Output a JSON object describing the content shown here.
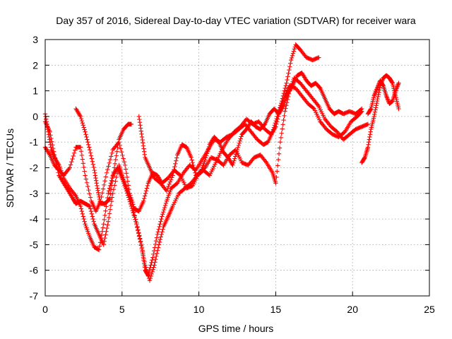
{
  "chart_data": {
    "type": "scatter",
    "title": "Day 357 of 2016, Sidereal Day-to-day VTEC variation (SDTVAR) for receiver wara",
    "xlabel": "GPS time / hours",
    "ylabel": "SDTVAR / TECUs",
    "xlim": [
      0,
      25
    ],
    "ylim": [
      -7,
      3
    ],
    "xticks": [
      "0",
      "5",
      "10",
      "15",
      "20",
      "25"
    ],
    "yticks": [
      "-7",
      "-6",
      "-5",
      "-4",
      "-3",
      "-2",
      "-1",
      "0",
      "1",
      "2",
      "3"
    ],
    "grid": true,
    "marker": "plus",
    "color": "#ff0000",
    "series": [
      {
        "points": [
          [
            0.0,
            -0.2
          ],
          [
            0.3,
            -0.6
          ],
          [
            0.6,
            -1.5
          ],
          [
            0.9,
            -2.3
          ],
          [
            1.2,
            -2.6
          ],
          [
            1.5,
            -2.9
          ],
          [
            1.8,
            -3.2
          ],
          [
            2.0,
            -3.4
          ],
          [
            2.3,
            -3.3
          ],
          [
            2.6,
            -3.4
          ],
          [
            2.9,
            -3.5
          ],
          [
            3.2,
            -4.2
          ],
          [
            3.5,
            -4.6
          ],
          [
            3.8,
            -5.0
          ],
          [
            4.1,
            -4.1
          ],
          [
            4.4,
            -3.0
          ],
          [
            4.8,
            -1.9
          ],
          [
            5.0,
            -2.3
          ],
          [
            5.3,
            -2.8
          ],
          [
            5.6,
            -3.3
          ],
          [
            6.0,
            -4.3
          ],
          [
            6.3,
            -5.1
          ],
          [
            6.5,
            -6.0
          ],
          [
            6.7,
            -6.2
          ],
          [
            7.0,
            -5.5
          ],
          [
            7.3,
            -4.6
          ],
          [
            7.6,
            -3.9
          ],
          [
            7.9,
            -3.3
          ],
          [
            8.2,
            -2.8
          ],
          [
            8.6,
            -2.6
          ],
          [
            9.0,
            -2.2
          ],
          [
            9.4,
            -1.9
          ],
          [
            9.8,
            -2.1
          ],
          [
            10.2,
            -1.7
          ],
          [
            10.6,
            -1.3
          ],
          [
            11.0,
            -0.9
          ],
          [
            11.4,
            -1.0
          ],
          [
            11.8,
            -0.8
          ],
          [
            12.2,
            -0.7
          ],
          [
            12.6,
            -0.5
          ],
          [
            13.0,
            -0.3
          ],
          [
            13.4,
            -0.6
          ],
          [
            13.8,
            -0.9
          ],
          [
            14.2,
            -1.1
          ],
          [
            14.5,
            -1.0
          ],
          [
            14.8,
            -0.6
          ],
          [
            15.1,
            0.0
          ],
          [
            15.4,
            0.6
          ],
          [
            15.7,
            1.3
          ],
          [
            16.0,
            2.2
          ],
          [
            16.3,
            2.8
          ],
          [
            16.6,
            2.6
          ],
          [
            17.0,
            2.3
          ],
          [
            17.4,
            2.2
          ],
          [
            17.8,
            2.3
          ]
        ]
      },
      {
        "points": [
          [
            0.0,
            -1.2
          ],
          [
            0.3,
            -1.5
          ],
          [
            0.6,
            -1.9
          ],
          [
            0.9,
            -2.1
          ],
          [
            1.2,
            -2.3
          ],
          [
            1.6,
            -2.0
          ],
          [
            2.0,
            -1.2
          ],
          [
            2.3,
            -1.2
          ],
          [
            2.6,
            -2.3
          ],
          [
            3.0,
            -3.3
          ],
          [
            3.3,
            -3.7
          ],
          [
            3.6,
            -3.3
          ],
          [
            4.0,
            -2.2
          ],
          [
            4.4,
            -1.3
          ],
          [
            4.8,
            -1.0
          ],
          [
            5.2,
            -1.9
          ],
          [
            5.5,
            -3.0
          ],
          [
            5.8,
            -3.6
          ],
          [
            6.1,
            -3.7
          ],
          [
            6.4,
            -3.3
          ],
          [
            6.7,
            -2.6
          ],
          [
            7.0,
            -2.2
          ],
          [
            7.3,
            -2.3
          ],
          [
            7.6,
            -2.6
          ],
          [
            8.0,
            -2.4
          ],
          [
            8.4,
            -2.1
          ],
          [
            8.8,
            -2.3
          ],
          [
            9.2,
            -2.8
          ],
          [
            9.6,
            -2.7
          ],
          [
            10.0,
            -2.2
          ],
          [
            10.4,
            -2.0
          ],
          [
            10.8,
            -1.6
          ],
          [
            11.2,
            -1.7
          ],
          [
            11.6,
            -1.9
          ],
          [
            12.0,
            -1.5
          ],
          [
            12.4,
            -1.3
          ],
          [
            12.8,
            -1.8
          ],
          [
            13.2,
            -1.9
          ],
          [
            13.6,
            -1.6
          ],
          [
            14.0,
            -1.5
          ],
          [
            14.4,
            -1.8
          ],
          [
            14.8,
            -2.2
          ],
          [
            15.0,
            -2.6
          ],
          [
            15.3,
            -1.0
          ],
          [
            15.6,
            0.2
          ],
          [
            15.9,
            1.0
          ],
          [
            16.2,
            1.5
          ],
          [
            16.6,
            1.3
          ],
          [
            17.0,
            1.0
          ],
          [
            17.4,
            0.7
          ],
          [
            17.8,
            0.4
          ],
          [
            18.2,
            -0.1
          ],
          [
            18.6,
            -0.4
          ],
          [
            19.0,
            -0.6
          ],
          [
            19.4,
            -0.9
          ],
          [
            19.8,
            -0.7
          ],
          [
            20.2,
            -0.5
          ],
          [
            20.6,
            -0.4
          ],
          [
            21.0,
            -0.3
          ]
        ]
      },
      {
        "points": [
          [
            0.0,
            0.1
          ],
          [
            0.2,
            -0.6
          ],
          [
            0.4,
            -1.3
          ],
          [
            0.6,
            -1.6
          ],
          [
            0.9,
            -1.9
          ],
          [
            1.2,
            -2.4
          ],
          [
            1.6,
            -2.8
          ],
          [
            2.0,
            -3.1
          ],
          [
            2.3,
            -3.5
          ],
          [
            2.6,
            -4.2
          ],
          [
            2.9,
            -4.7
          ],
          [
            3.2,
            -5.1
          ],
          [
            3.5,
            -5.2
          ],
          [
            3.8,
            -4.2
          ],
          [
            4.1,
            -3.0
          ],
          [
            4.4,
            -2.3
          ],
          [
            4.7,
            -2.0
          ],
          [
            5.0,
            -2.4
          ],
          [
            5.3,
            -2.9
          ],
          [
            5.6,
            -3.5
          ],
          [
            5.9,
            -4.1
          ],
          [
            6.2,
            -4.9
          ],
          [
            6.5,
            -5.8
          ],
          [
            6.8,
            -6.4
          ],
          [
            7.1,
            -5.8
          ],
          [
            7.4,
            -5.0
          ],
          [
            7.7,
            -4.3
          ],
          [
            8.0,
            -3.9
          ],
          [
            8.3,
            -3.5
          ],
          [
            8.7,
            -3.0
          ],
          [
            9.1,
            -2.8
          ],
          [
            9.5,
            -2.6
          ],
          [
            9.9,
            -2.3
          ],
          [
            10.3,
            -2.1
          ],
          [
            10.7,
            -2.3
          ],
          [
            11.1,
            -1.8
          ],
          [
            11.5,
            -1.3
          ],
          [
            11.9,
            -0.9
          ],
          [
            12.3,
            -0.6
          ],
          [
            12.7,
            -0.4
          ],
          [
            13.1,
            -0.1
          ],
          [
            13.5,
            -0.3
          ],
          [
            13.9,
            -0.2
          ],
          [
            14.3,
            -0.5
          ],
          [
            14.7,
            -0.7
          ],
          [
            15.0,
            -0.4
          ],
          [
            15.3,
            0.3
          ],
          [
            15.6,
            0.8
          ],
          [
            15.9,
            1.2
          ],
          [
            16.3,
            1.1
          ],
          [
            16.7,
            0.8
          ],
          [
            17.1,
            0.5
          ],
          [
            17.5,
            0.3
          ],
          [
            17.9,
            -0.2
          ],
          [
            18.3,
            -0.5
          ],
          [
            18.7,
            -0.7
          ],
          [
            19.1,
            -0.8
          ],
          [
            19.5,
            -0.6
          ],
          [
            19.9,
            -0.2
          ],
          [
            20.3,
            0.0
          ],
          [
            20.6,
            0.2
          ]
        ]
      },
      {
        "points": [
          [
            2.0,
            0.3
          ],
          [
            2.3,
            0.0
          ],
          [
            2.6,
            -0.6
          ],
          [
            2.9,
            -1.3
          ],
          [
            3.2,
            -2.1
          ],
          [
            3.4,
            -2.8
          ],
          [
            3.6,
            -3.4
          ],
          [
            3.9,
            -3.4
          ],
          [
            4.2,
            -3.2
          ],
          [
            4.5,
            -2.0
          ],
          [
            4.8,
            -0.9
          ],
          [
            5.1,
            -0.5
          ],
          [
            5.4,
            -0.3
          ],
          [
            5.6,
            -0.3
          ]
        ]
      },
      {
        "points": [
          [
            6.1,
            0.0
          ],
          [
            6.3,
            -0.8
          ],
          [
            6.5,
            -1.6
          ],
          [
            6.8,
            -2.0
          ],
          [
            7.1,
            -2.4
          ],
          [
            7.5,
            -2.6
          ],
          [
            7.9,
            -2.9
          ],
          [
            8.3,
            -2.3
          ],
          [
            8.6,
            -1.5
          ],
          [
            8.9,
            -1.1
          ],
          [
            9.2,
            -1.2
          ],
          [
            9.5,
            -1.6
          ],
          [
            9.8,
            -2.3
          ],
          [
            10.1,
            -2.2
          ],
          [
            10.4,
            -1.7
          ],
          [
            10.7,
            -1.1
          ],
          [
            11.0,
            -0.8
          ],
          [
            11.3,
            -1.0
          ],
          [
            11.6,
            -1.4
          ],
          [
            11.9,
            -1.6
          ],
          [
            12.2,
            -1.9
          ],
          [
            12.5,
            -1.3
          ],
          [
            12.8,
            -0.7
          ],
          [
            13.1,
            -0.5
          ],
          [
            13.4,
            -0.2
          ],
          [
            13.7,
            -0.4
          ],
          [
            14.0,
            -0.5
          ],
          [
            14.3,
            -0.3
          ],
          [
            14.6,
            0.1
          ],
          [
            14.9,
            0.3
          ],
          [
            15.2,
            0.1
          ],
          [
            15.5,
            0.4
          ],
          [
            15.8,
            0.9
          ],
          [
            16.1,
            1.2
          ],
          [
            16.4,
            1.6
          ],
          [
            16.7,
            1.7
          ],
          [
            17.0,
            1.4
          ],
          [
            17.3,
            1.2
          ],
          [
            17.6,
            1.3
          ],
          [
            17.9,
            1.1
          ],
          [
            18.2,
            0.7
          ],
          [
            18.5,
            0.3
          ],
          [
            18.8,
            0.1
          ],
          [
            19.1,
            0.2
          ],
          [
            19.4,
            0.1
          ],
          [
            19.8,
            0.2
          ],
          [
            20.2,
            0.1
          ],
          [
            20.6,
            0.3
          ]
        ]
      },
      {
        "points": [
          [
            20.6,
            -1.8
          ],
          [
            20.8,
            -1.6
          ],
          [
            21.0,
            -1.2
          ],
          [
            21.2,
            -0.5
          ],
          [
            21.4,
            0.0
          ],
          [
            21.6,
            0.6
          ],
          [
            21.8,
            1.2
          ],
          [
            22.0,
            1.5
          ],
          [
            22.2,
            1.6
          ],
          [
            22.4,
            1.5
          ],
          [
            22.6,
            1.3
          ],
          [
            22.8,
            0.8
          ],
          [
            23.0,
            0.3
          ]
        ]
      },
      {
        "points": [
          [
            21.0,
            0.1
          ],
          [
            21.2,
            0.3
          ],
          [
            21.4,
            0.8
          ],
          [
            21.6,
            1.1
          ],
          [
            21.8,
            1.4
          ],
          [
            22.0,
            1.2
          ],
          [
            22.2,
            0.8
          ],
          [
            22.4,
            0.5
          ],
          [
            22.6,
            0.6
          ],
          [
            22.8,
            1.0
          ],
          [
            23.0,
            1.3
          ]
        ]
      }
    ]
  }
}
